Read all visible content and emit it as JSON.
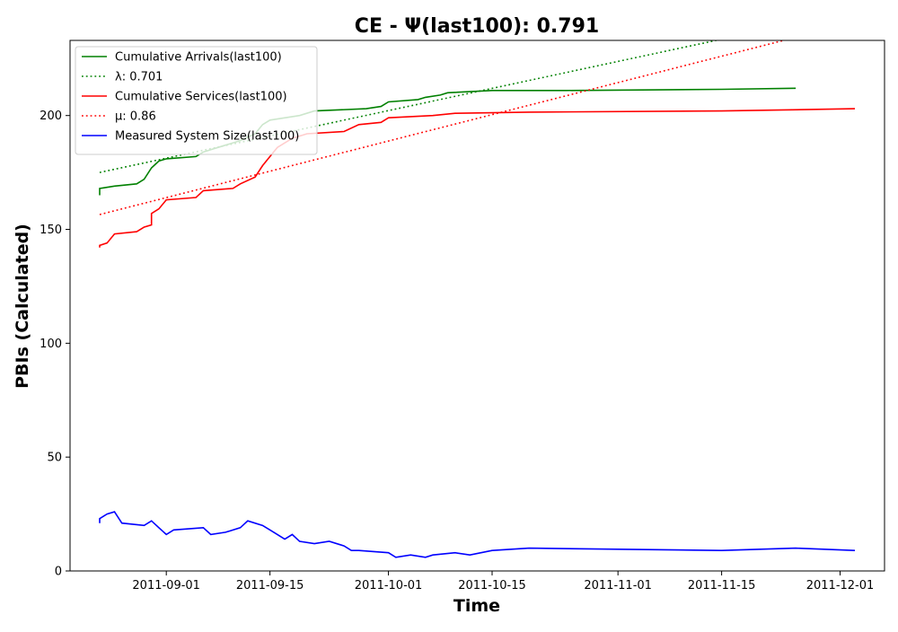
{
  "chart_data": {
    "type": "line",
    "title": "CE -  Ψ(last100): 0.791",
    "xlabel": "Time",
    "ylabel": "PBIs (Calculated)",
    "xlim": [
      "2011-08-19",
      "2011-12-07"
    ],
    "ylim": [
      0,
      233
    ],
    "x_ticks": [
      "2011-09-01",
      "2011-09-15",
      "2011-10-01",
      "2011-10-15",
      "2011-11-01",
      "2011-11-15",
      "2011-12-01"
    ],
    "y_ticks": [
      0,
      50,
      100,
      150,
      200
    ],
    "grid": false,
    "legend_position": "top-left",
    "series": [
      {
        "name": "Cumulative Arrivals(last100)",
        "color": "#008000",
        "style": "solid",
        "points": [
          [
            "2011-08-23",
            165
          ],
          [
            "2011-08-23",
            168
          ],
          [
            "2011-08-25",
            169
          ],
          [
            "2011-08-28",
            170
          ],
          [
            "2011-08-29",
            172
          ],
          [
            "2011-08-30",
            177
          ],
          [
            "2011-08-31",
            180
          ],
          [
            "2011-09-01",
            181
          ],
          [
            "2011-09-05",
            182
          ],
          [
            "2011-09-06",
            184
          ],
          [
            "2011-09-08",
            186
          ],
          [
            "2011-09-11",
            189
          ],
          [
            "2011-09-13",
            192
          ],
          [
            "2011-09-14",
            196
          ],
          [
            "2011-09-15",
            198
          ],
          [
            "2011-09-19",
            200
          ],
          [
            "2011-09-21",
            202
          ],
          [
            "2011-09-28",
            203
          ],
          [
            "2011-09-30",
            204
          ],
          [
            "2011-10-01",
            206
          ],
          [
            "2011-10-05",
            207
          ],
          [
            "2011-10-06",
            208
          ],
          [
            "2011-10-08",
            209
          ],
          [
            "2011-10-09",
            210
          ],
          [
            "2011-10-15",
            211
          ],
          [
            "2011-10-25",
            211
          ],
          [
            "2011-11-15",
            211.5
          ],
          [
            "2011-11-25",
            212
          ]
        ]
      },
      {
        "name": "λ: 0.701",
        "color": "#008000",
        "style": "dotted",
        "points": [
          [
            "2011-08-23",
            175
          ],
          [
            "2011-11-15",
            233.5
          ]
        ]
      },
      {
        "name": "Cumulative Services(last100)",
        "color": "#ff0000",
        "style": "solid",
        "points": [
          [
            "2011-08-23",
            142
          ],
          [
            "2011-08-23",
            143
          ],
          [
            "2011-08-24",
            144
          ],
          [
            "2011-08-25",
            148
          ],
          [
            "2011-08-28",
            149
          ],
          [
            "2011-08-29",
            151
          ],
          [
            "2011-08-30",
            152
          ],
          [
            "2011-08-30",
            157
          ],
          [
            "2011-08-31",
            159
          ],
          [
            "2011-09-01",
            163
          ],
          [
            "2011-09-05",
            164
          ],
          [
            "2011-09-06",
            167
          ],
          [
            "2011-09-10",
            168
          ],
          [
            "2011-09-11",
            170
          ],
          [
            "2011-09-13",
            173
          ],
          [
            "2011-09-14",
            178
          ],
          [
            "2011-09-15",
            182
          ],
          [
            "2011-09-16",
            186
          ],
          [
            "2011-09-18",
            190
          ],
          [
            "2011-09-20",
            192
          ],
          [
            "2011-09-25",
            193
          ],
          [
            "2011-09-27",
            196
          ],
          [
            "2011-09-30",
            197
          ],
          [
            "2011-10-01",
            199
          ],
          [
            "2011-10-07",
            200
          ],
          [
            "2011-10-10",
            201
          ],
          [
            "2011-10-20",
            201.5
          ],
          [
            "2011-11-15",
            202
          ],
          [
            "2011-12-03",
            203
          ]
        ]
      },
      {
        "name": "μ: 0.86",
        "color": "#ff0000",
        "style": "dotted",
        "points": [
          [
            "2011-08-23",
            156.5
          ],
          [
            "2011-11-24",
            233.5
          ]
        ]
      },
      {
        "name": "Measured System Size(last100)",
        "color": "#0000ff",
        "style": "solid",
        "points": [
          [
            "2011-08-23",
            21
          ],
          [
            "2011-08-23",
            23
          ],
          [
            "2011-08-24",
            25
          ],
          [
            "2011-08-25",
            26
          ],
          [
            "2011-08-26",
            21
          ],
          [
            "2011-08-29",
            20
          ],
          [
            "2011-08-30",
            22
          ],
          [
            "2011-08-31",
            19
          ],
          [
            "2011-09-01",
            16
          ],
          [
            "2011-09-02",
            18
          ],
          [
            "2011-09-06",
            19
          ],
          [
            "2011-09-07",
            16
          ],
          [
            "2011-09-09",
            17
          ],
          [
            "2011-09-11",
            19
          ],
          [
            "2011-09-12",
            22
          ],
          [
            "2011-09-14",
            20
          ],
          [
            "2011-09-15",
            18
          ],
          [
            "2011-09-16",
            16
          ],
          [
            "2011-09-17",
            14
          ],
          [
            "2011-09-18",
            16
          ],
          [
            "2011-09-19",
            13
          ],
          [
            "2011-09-21",
            12
          ],
          [
            "2011-09-23",
            13
          ],
          [
            "2011-09-25",
            11
          ],
          [
            "2011-09-26",
            9
          ],
          [
            "2011-09-27",
            9
          ],
          [
            "2011-10-01",
            8
          ],
          [
            "2011-10-02",
            6
          ],
          [
            "2011-10-04",
            7
          ],
          [
            "2011-10-06",
            6
          ],
          [
            "2011-10-07",
            7
          ],
          [
            "2011-10-10",
            8
          ],
          [
            "2011-10-12",
            7
          ],
          [
            "2011-10-15",
            9
          ],
          [
            "2011-10-20",
            10
          ],
          [
            "2011-11-15",
            9
          ],
          [
            "2011-11-25",
            10
          ],
          [
            "2011-12-03",
            9
          ]
        ]
      }
    ]
  }
}
